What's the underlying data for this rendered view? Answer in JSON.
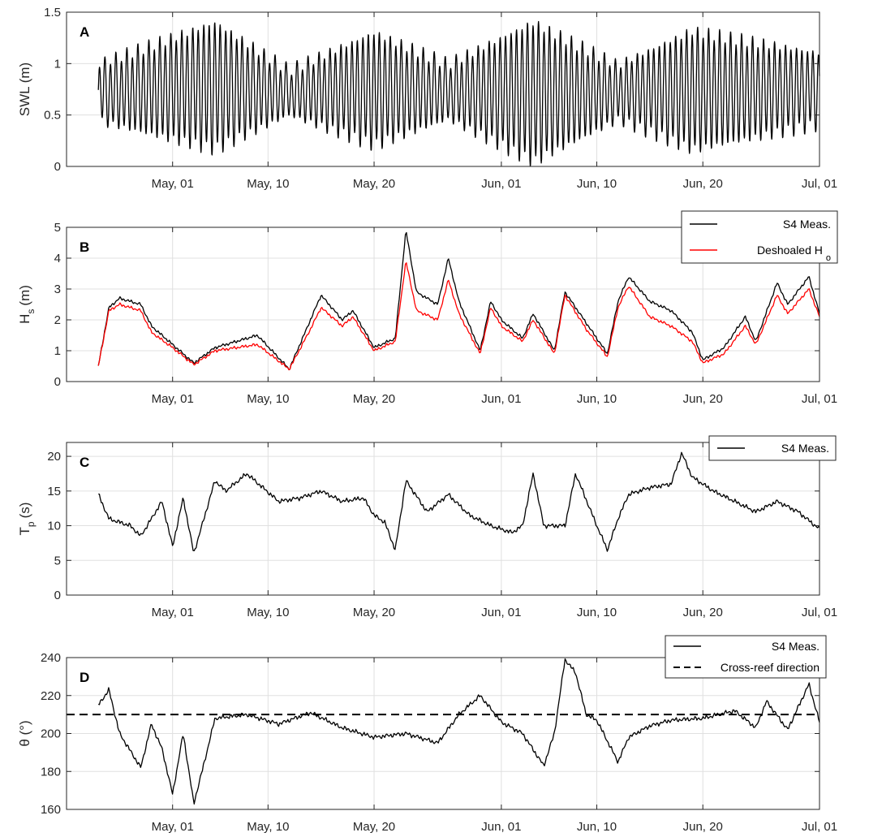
{
  "chart_data": [
    {
      "type": "line",
      "panel_label": "A",
      "ylabel": "SWL (m)",
      "ylim": [
        0,
        1.5
      ],
      "yticks": [
        "0",
        "0.5",
        "1",
        "1.5"
      ],
      "xticks": [
        "May, 01",
        "May, 10",
        "May, 20",
        "Jun, 01",
        "Jun, 10",
        "Jun, 20",
        "Jul, 01"
      ],
      "grid": true,
      "legend": null,
      "x_start": "2016-04-24",
      "x_end": "2016-07-01",
      "series": [
        {
          "color": "#000000",
          "dash": "solid",
          "kind": "tide",
          "x": [
            "2016-04-24",
            "2016-05-05",
            "2016-05-12",
            "2016-05-20",
            "2016-05-27",
            "2016-06-04",
            "2016-06-12",
            "2016-06-19",
            "2016-07-01"
          ],
          "mean": [
            0.72,
            0.78,
            0.72,
            0.75,
            0.73,
            0.72,
            0.72,
            0.74,
            0.75
          ],
          "amplitude": [
            0.28,
            0.62,
            0.22,
            0.55,
            0.27,
            0.68,
            0.27,
            0.58,
            0.35
          ]
        }
      ]
    },
    {
      "type": "line",
      "panel_label": "B",
      "ylabel": "H",
      "ylabel_sub": "s",
      "ylabel_suffix": "(m)",
      "ylim": [
        0,
        5
      ],
      "yticks": [
        "0",
        "1",
        "2",
        "3",
        "4",
        "5"
      ],
      "xticks": [
        "May, 01",
        "May, 10",
        "May, 20",
        "Jun, 01",
        "Jun, 10",
        "Jun, 20",
        "Jul, 01"
      ],
      "grid": true,
      "legend": "top-right",
      "series": [
        {
          "name": "S4 Meas.",
          "color": "#000000",
          "dash": "solid",
          "x": [
            "2016-04-24",
            "2016-04-25",
            "2016-04-26",
            "2016-04-28",
            "2016-04-29",
            "2016-05-01",
            "2016-05-03",
            "2016-05-05",
            "2016-05-07",
            "2016-05-09",
            "2016-05-12",
            "2016-05-14",
            "2016-05-15",
            "2016-05-17",
            "2016-05-18",
            "2016-05-20",
            "2016-05-22",
            "2016-05-23",
            "2016-05-24",
            "2016-05-26",
            "2016-05-27",
            "2016-05-28",
            "2016-05-30",
            "2016-05-31",
            "2016-06-01",
            "2016-06-03",
            "2016-06-04",
            "2016-06-06",
            "2016-06-07",
            "2016-06-09",
            "2016-06-11",
            "2016-06-12",
            "2016-06-13",
            "2016-06-15",
            "2016-06-17",
            "2016-06-19",
            "2016-06-20",
            "2016-06-22",
            "2016-06-24",
            "2016-06-25",
            "2016-06-27",
            "2016-06-28",
            "2016-06-30",
            "2016-07-01"
          ],
          "y": [
            0.5,
            2.4,
            2.7,
            2.5,
            1.8,
            1.2,
            0.6,
            1.1,
            1.3,
            1.5,
            0.4,
            2.0,
            2.8,
            2.0,
            2.3,
            1.1,
            1.4,
            4.9,
            2.9,
            2.5,
            4.0,
            2.6,
            1.0,
            2.6,
            2.0,
            1.4,
            2.2,
            1.0,
            2.9,
            1.9,
            0.9,
            2.6,
            3.4,
            2.6,
            2.3,
            1.6,
            0.7,
            1.1,
            2.1,
            1.3,
            3.2,
            2.5,
            3.4,
            2.2
          ]
        },
        {
          "name": "Deshoaled H",
          "name_sub": "o",
          "color": "#ff0000",
          "dash": "solid",
          "x": [
            "2016-04-24",
            "2016-04-25",
            "2016-04-26",
            "2016-04-28",
            "2016-04-29",
            "2016-05-01",
            "2016-05-03",
            "2016-05-05",
            "2016-05-07",
            "2016-05-09",
            "2016-05-12",
            "2016-05-14",
            "2016-05-15",
            "2016-05-17",
            "2016-05-18",
            "2016-05-20",
            "2016-05-22",
            "2016-05-23",
            "2016-05-24",
            "2016-05-26",
            "2016-05-27",
            "2016-05-28",
            "2016-05-30",
            "2016-05-31",
            "2016-06-01",
            "2016-06-03",
            "2016-06-04",
            "2016-06-06",
            "2016-06-07",
            "2016-06-09",
            "2016-06-11",
            "2016-06-12",
            "2016-06-13",
            "2016-06-15",
            "2016-06-17",
            "2016-06-19",
            "2016-06-20",
            "2016-06-22",
            "2016-06-24",
            "2016-06-25",
            "2016-06-27",
            "2016-06-28",
            "2016-06-30",
            "2016-07-01"
          ],
          "y": [
            0.5,
            2.3,
            2.5,
            2.3,
            1.6,
            1.1,
            0.55,
            1.0,
            1.1,
            1.2,
            0.4,
            1.7,
            2.4,
            1.8,
            2.1,
            1.0,
            1.3,
            3.9,
            2.3,
            2.0,
            3.3,
            2.2,
            0.9,
            2.4,
            1.8,
            1.3,
            2.0,
            0.9,
            2.8,
            1.7,
            0.8,
            2.4,
            3.1,
            2.1,
            1.8,
            1.3,
            0.6,
            0.9,
            1.8,
            1.2,
            2.8,
            2.2,
            3.0,
            2.1
          ]
        }
      ]
    },
    {
      "type": "line",
      "panel_label": "C",
      "ylabel": "T",
      "ylabel_sub": "p",
      "ylabel_suffix": "(s)",
      "ylim": [
        0,
        22
      ],
      "yticks": [
        "0",
        "5",
        "10",
        "15",
        "20"
      ],
      "xticks": [
        "May, 01",
        "May, 10",
        "May, 20",
        "Jun, 01",
        "Jun, 10",
        "Jun, 20",
        "Jul, 01"
      ],
      "grid": true,
      "legend": "top-right",
      "series": [
        {
          "name": "S4 Meas.",
          "color": "#000000",
          "dash": "solid",
          "x": [
            "2016-04-24",
            "2016-04-25",
            "2016-04-27",
            "2016-04-28",
            "2016-04-30",
            "2016-05-01",
            "2016-05-02",
            "2016-05-03",
            "2016-05-05",
            "2016-05-06",
            "2016-05-08",
            "2016-05-11",
            "2016-05-13",
            "2016-05-15",
            "2016-05-17",
            "2016-05-19",
            "2016-05-20",
            "2016-05-21",
            "2016-05-22",
            "2016-05-23",
            "2016-05-25",
            "2016-05-27",
            "2016-05-29",
            "2016-05-31",
            "2016-06-02",
            "2016-06-03",
            "2016-06-04",
            "2016-06-05",
            "2016-06-07",
            "2016-06-08",
            "2016-06-10",
            "2016-06-11",
            "2016-06-12",
            "2016-06-13",
            "2016-06-15",
            "2016-06-17",
            "2016-06-18",
            "2016-06-19",
            "2016-06-21",
            "2016-06-23",
            "2016-06-25",
            "2016-06-27",
            "2016-06-29",
            "2016-07-01"
          ],
          "y": [
            14.5,
            11.0,
            10.0,
            8.5,
            13.5,
            7.0,
            14.0,
            6.0,
            16.5,
            15.0,
            17.5,
            13.5,
            14.0,
            15.0,
            13.5,
            14.0,
            11.5,
            10.5,
            6.5,
            16.5,
            12.0,
            14.5,
            11.5,
            10.0,
            9.0,
            10.0,
            17.5,
            10.0,
            10.0,
            17.5,
            10.0,
            6.5,
            11.0,
            14.5,
            15.5,
            16.0,
            20.5,
            17.0,
            15.0,
            13.5,
            12.0,
            13.5,
            12.0,
            9.5
          ]
        }
      ]
    },
    {
      "type": "line",
      "panel_label": "D",
      "ylabel": "θ (°)",
      "ylim": [
        160,
        240
      ],
      "yticks": [
        "160",
        "180",
        "200",
        "220",
        "240"
      ],
      "xticks": [
        "May, 01",
        "May, 10",
        "May, 20",
        "Jun, 01",
        "Jun, 10",
        "Jun, 20",
        "Jul, 01"
      ],
      "grid": true,
      "legend": "top-right",
      "series": [
        {
          "name": "S4 Meas.",
          "color": "#000000",
          "dash": "solid",
          "x": [
            "2016-04-24",
            "2016-04-25",
            "2016-04-26",
            "2016-04-28",
            "2016-04-29",
            "2016-04-30",
            "2016-05-01",
            "2016-05-02",
            "2016-05-03",
            "2016-05-04",
            "2016-05-05",
            "2016-05-08",
            "2016-05-11",
            "2016-05-14",
            "2016-05-17",
            "2016-05-20",
            "2016-05-23",
            "2016-05-26",
            "2016-05-28",
            "2016-05-30",
            "2016-06-01",
            "2016-06-03",
            "2016-06-05",
            "2016-06-06",
            "2016-06-07",
            "2016-06-08",
            "2016-06-09",
            "2016-06-10",
            "2016-06-12",
            "2016-06-13",
            "2016-06-15",
            "2016-06-17",
            "2016-06-20",
            "2016-06-23",
            "2016-06-25",
            "2016-06-26",
            "2016-06-28",
            "2016-06-30",
            "2016-07-01"
          ],
          "y": [
            215,
            223,
            200,
            182,
            205,
            192,
            168,
            200,
            163,
            185,
            208,
            210,
            205,
            211,
            203,
            198,
            200,
            195,
            210,
            220,
            206,
            200,
            183,
            200,
            239,
            232,
            210,
            207,
            185,
            198,
            204,
            207,
            208,
            212,
            203,
            217,
            202,
            226,
            206
          ]
        },
        {
          "name": "Cross-reef direction",
          "color": "#000000",
          "dash": "dashed",
          "x": [
            "2016-04-21",
            "2016-07-01"
          ],
          "y": [
            210,
            210
          ]
        }
      ]
    }
  ]
}
